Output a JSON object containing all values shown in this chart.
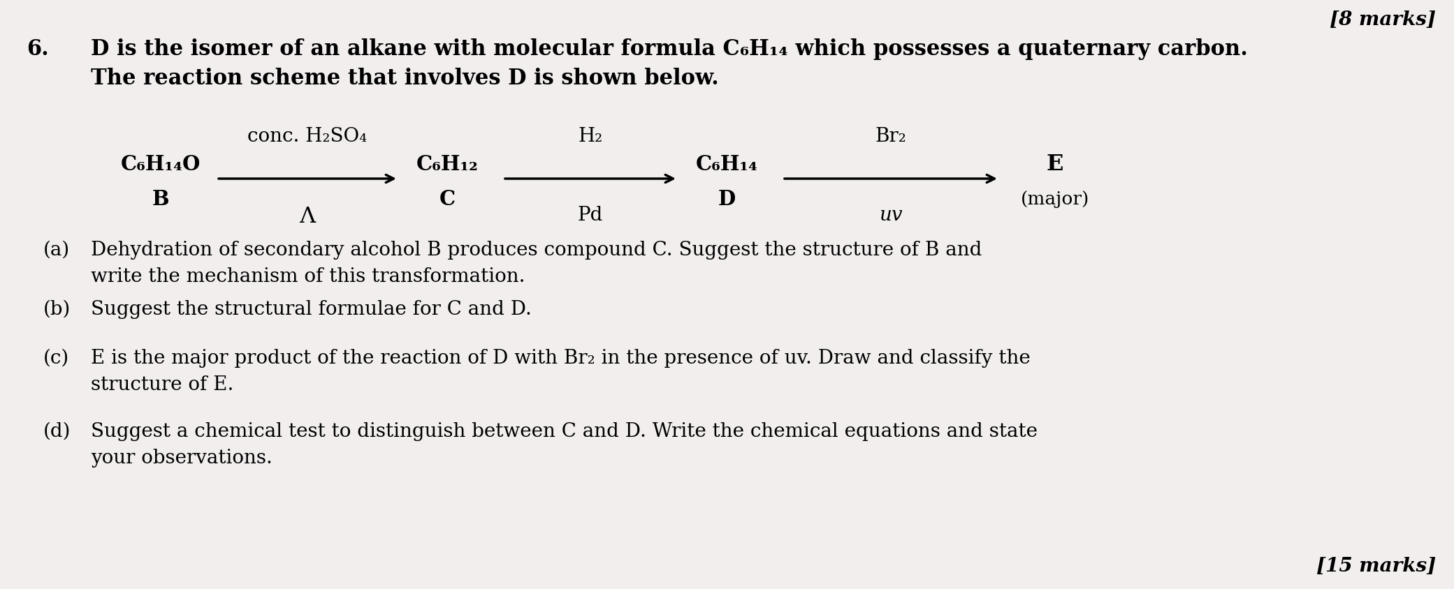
{
  "background_color": "#f2eeee",
  "marks_top_right": "[8 marks]",
  "question_number": "6.",
  "question_text_line1": "D is the isomer of an alkane with molecular formula C₆H₁₄ which possesses a quaternary carbon.",
  "question_text_line2": "The reaction scheme that involves D is shown below.",
  "scheme": {
    "compound_B": "C₆H₁₄O",
    "label_B": "B",
    "arrow1_above": "conc. H₂SO₄",
    "arrow1_below": "Λ",
    "compound_C": "C₆H₁₂",
    "label_C": "C",
    "arrow2_above": "H₂",
    "arrow2_below": "Pd",
    "compound_D": "C₆H₁₄",
    "label_D": "D",
    "arrow3_above": "Br₂",
    "arrow3_below": "uv",
    "compound_E": "E",
    "label_E": "(major)"
  },
  "parts": [
    {
      "label": "(a)",
      "text_lines": [
        "Dehydration of secondary alcohol B produces compound C. Suggest the structure of B and",
        "write the mechanism of this transformation."
      ]
    },
    {
      "label": "(b)",
      "text_lines": [
        "Suggest the structural formulae for C and D."
      ]
    },
    {
      "label": "(c)",
      "text_lines": [
        "E is the major product of the reaction of D with Br₂ in the presence of uv. Draw and classify the",
        "structure of E."
      ]
    },
    {
      "label": "(d)",
      "text_lines": [
        "Suggest a chemical test to distinguish between C and D. Write the chemical equations and state",
        "your observations."
      ]
    }
  ],
  "marks_bottom_right": "[15 marks]",
  "font_color": "#000000",
  "main_fontsize": 22,
  "scheme_fontsize": 21,
  "label_fontsize": 20,
  "marks_fontsize": 20
}
